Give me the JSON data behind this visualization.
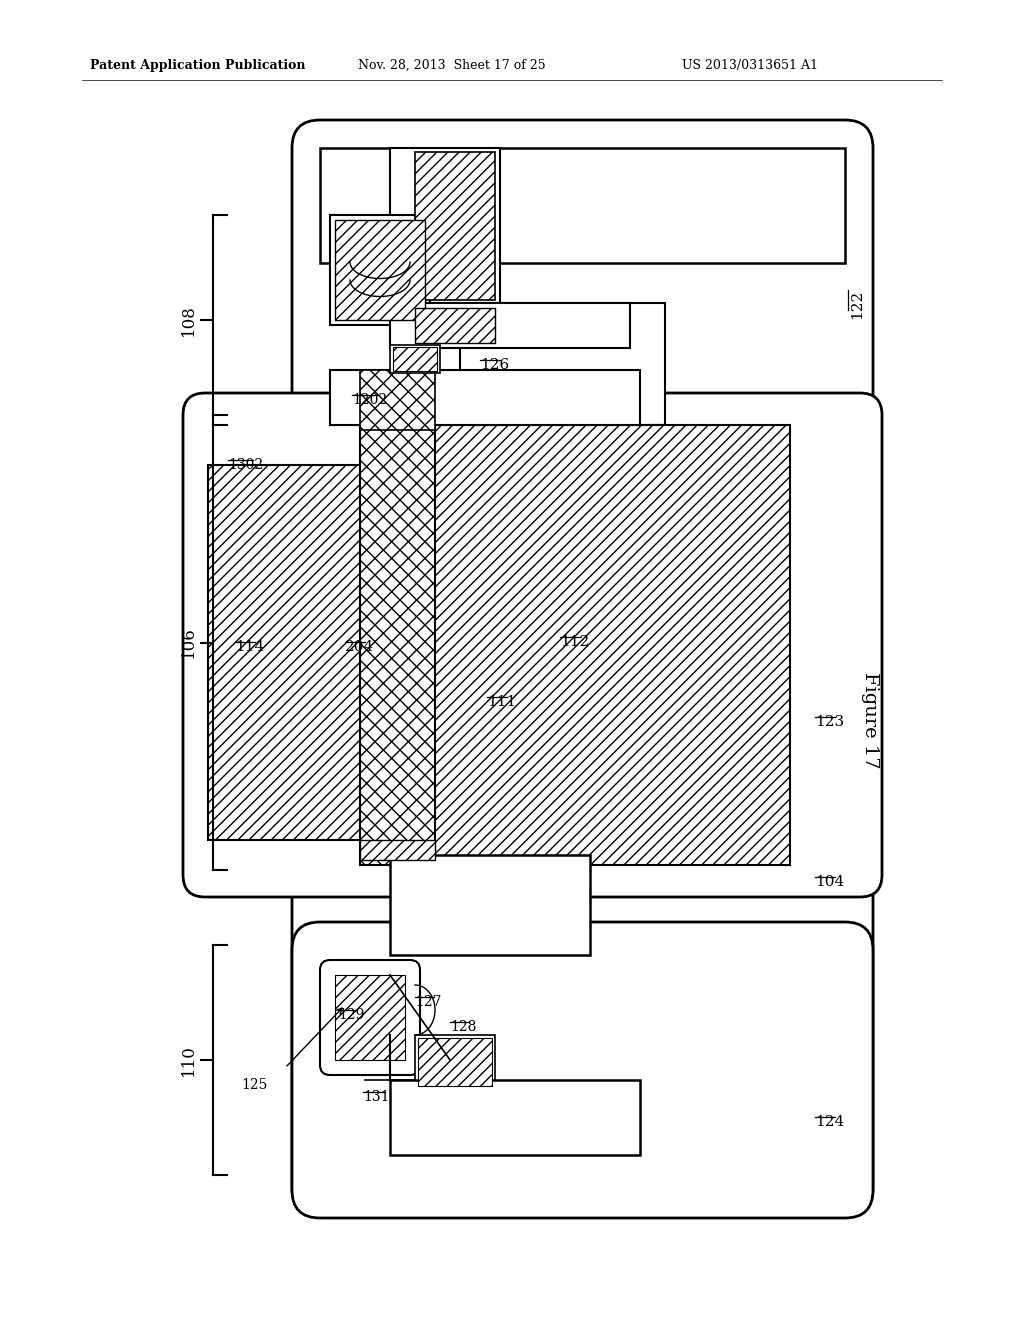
{
  "bg_color": "#ffffff",
  "lc": "#000000",
  "header_left": "Patent Application Publication",
  "header_mid": "Nov. 28, 2013  Sheet 17 of 25",
  "header_right": "US 2013/0313651 A1",
  "figure_label": "Figure 17"
}
